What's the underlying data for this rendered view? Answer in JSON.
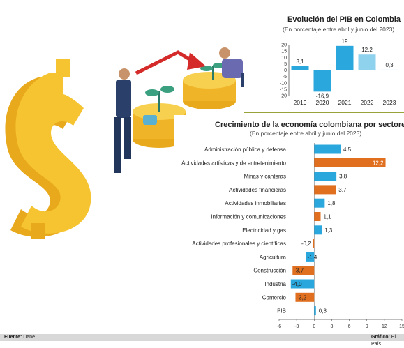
{
  "chart_data": [
    {
      "type": "bar",
      "title": "Evolución del PIB en Colombia",
      "subtitle": "(En porcentaje entre abril y junio del 2023)",
      "categories": [
        "2019",
        "2020",
        "2021",
        "2022",
        "2023"
      ],
      "values": [
        3.1,
        -16.9,
        19,
        12.2,
        0.3
      ],
      "value_labels": [
        "3,1",
        "-16,9",
        "19",
        "12,2",
        "0,3"
      ],
      "ylim": [
        -20,
        20
      ],
      "yticks": [
        "20",
        "15",
        "10",
        "5",
        "0",
        "-5",
        "-10",
        "-15",
        "-20"
      ],
      "colors": [
        "#2aa8de",
        "#2aa8de",
        "#2aa8de",
        "#8fd2ee",
        "#2aa8de"
      ],
      "grid": false
    },
    {
      "type": "bar",
      "orientation": "horizontal",
      "title": "Crecimiento de la economía colombiana por sectores",
      "subtitle": "(En porcentaje entre abril y junio del 2023)",
      "categories": [
        "Administración pública y defensa",
        "Actividades artísticas y de entretenimiento",
        "Minas y canteras",
        "Actividades financieras",
        "Actividades inmobiliarias",
        "Información y comunicaciones",
        "Electricidad y gas",
        "Actividades profesionales y científicas",
        "Agricultura",
        "Construcción",
        "Industria",
        "Comercio",
        "PIB"
      ],
      "values": [
        4.5,
        12.2,
        3.8,
        3.7,
        1.8,
        1.1,
        1.3,
        -0.2,
        -1.4,
        -3.7,
        -4.0,
        -3.2,
        0.3
      ],
      "value_labels": [
        "4,5",
        "12,2",
        "3,8",
        "3,7",
        "1,8",
        "1,1",
        "1,3",
        "-0,2",
        "-1,4",
        "-3,7",
        "-4,0",
        "-3,2",
        "0,3"
      ],
      "colors": [
        "#2aa8de",
        "#e07020",
        "#2aa8de",
        "#e07020",
        "#2aa8de",
        "#e07020",
        "#2aa8de",
        "#e07020",
        "#2aa8de",
        "#e07020",
        "#2aa8de",
        "#e07020",
        "#2aa8de"
      ],
      "xlim": [
        -6,
        15
      ],
      "xticks": [
        "-6",
        "-3",
        "0",
        "3",
        "6",
        "9",
        "12",
        "15"
      ],
      "grid": false
    }
  ],
  "footer": {
    "source_label": "Fuente:",
    "source_value": "Dane",
    "graphic_label": "Gráfico:",
    "graphic_value": "El País"
  }
}
